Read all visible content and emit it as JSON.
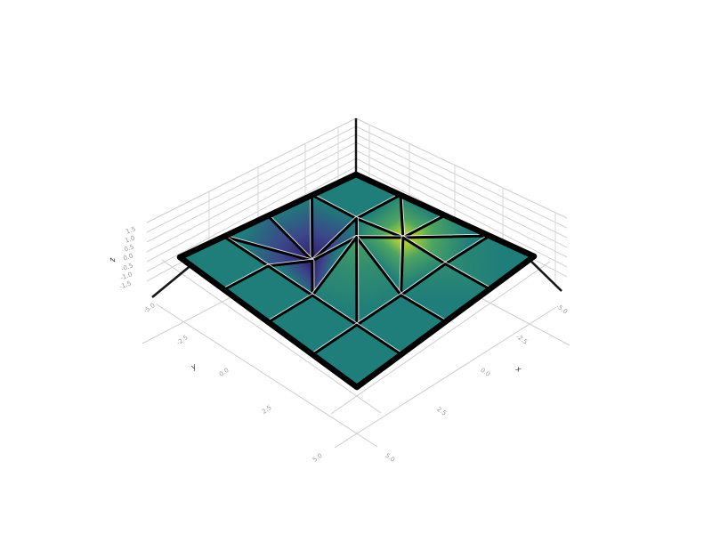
{
  "figure": {
    "type": "3d-surface-plot",
    "background_color": "#ffffff",
    "description": "3D mesh surface plot: flat plane at z=0 with one raised peak (yellow) and one sunken dip (dark indigo), viridis colormap, black wireframe edges, gray box grid"
  },
  "chart_data": {
    "type": "surface",
    "title": "",
    "legend": null,
    "grid": "on",
    "axes": {
      "x": {
        "label": "x",
        "ticks": [
          "-5.0",
          "-2.5",
          "0.0",
          "2.5",
          "5.0"
        ]
      },
      "y": {
        "label": "y",
        "ticks": [
          "-5.0",
          "-2.5",
          "0.0",
          "2.5",
          "5.0"
        ]
      },
      "z": {
        "label": "z",
        "ticks": [
          "1.5",
          "1.0",
          "0.5",
          "0.0",
          "-0.5",
          "-1.0",
          "-1.5"
        ]
      }
    },
    "colormap": {
      "name": "viridis",
      "stops": [
        [
          -1,
          "#2e1c66"
        ],
        [
          -0.5,
          "#3f3f8c"
        ],
        [
          0,
          "#1f7d7a"
        ],
        [
          0.5,
          "#52a85e"
        ],
        [
          1,
          "#d9e026"
        ]
      ]
    },
    "colors": {
      "flat_surface": "#1f7d7a",
      "peak": "#d9e026",
      "dip": "#2e1c66",
      "edge": "#000000",
      "edge_halo": "#ffffff",
      "grid_line": "#d2d2d2",
      "floor_line": "#cdcdcd",
      "spine": "#161616",
      "tick_text": "#9a9a9a",
      "axis_letter_text": "#3a3a3a"
    },
    "surface": {
      "grid_cells": [
        4,
        4
      ],
      "flat_z": 0,
      "peak": {
        "x": 1.05,
        "y": 2.1,
        "z": 1.0
      },
      "dip": {
        "x": 2.2,
        "y": 1.2,
        "z": -1.0
      },
      "points": [
        [
          0,
          0,
          0
        ],
        [
          0,
          1,
          0
        ],
        [
          0,
          2,
          0
        ],
        [
          0,
          3,
          0
        ],
        [
          0,
          4,
          0
        ],
        [
          1,
          0,
          0
        ],
        [
          1,
          1,
          0
        ],
        [
          1.05,
          2.1,
          1.0
        ],
        [
          1,
          3,
          0.18
        ],
        [
          1,
          4,
          0
        ],
        [
          2,
          0,
          0
        ],
        [
          2.2,
          1.2,
          -1.0
        ],
        [
          1.45,
          1.45,
          0.4
        ],
        [
          2,
          3,
          0
        ],
        [
          2,
          4,
          0
        ],
        [
          3,
          0,
          0
        ],
        [
          3,
          1,
          0
        ],
        [
          3,
          2,
          0
        ],
        [
          3,
          3,
          0
        ],
        [
          3,
          4,
          0
        ],
        [
          4,
          0,
          0
        ],
        [
          4,
          1,
          0
        ],
        [
          4,
          2,
          0
        ],
        [
          4,
          3,
          0
        ],
        [
          4,
          4,
          0
        ]
      ],
      "faces": [
        [
          0,
          1,
          6,
          5
        ],
        [
          3,
          4,
          9,
          8
        ],
        [
          8,
          9,
          14,
          13
        ],
        [
          13,
          14,
          19,
          18
        ],
        [
          15,
          16,
          21,
          20
        ],
        [
          16,
          17,
          22,
          21
        ],
        [
          17,
          18,
          23,
          22
        ],
        [
          18,
          19,
          24,
          23
        ],
        [
          1,
          2,
          7
        ],
        [
          1,
          7,
          6
        ],
        [
          2,
          3,
          7
        ],
        [
          3,
          8,
          7
        ],
        [
          7,
          8,
          13
        ],
        [
          7,
          13,
          12
        ],
        [
          6,
          7,
          12
        ],
        [
          6,
          12,
          11
        ],
        [
          5,
          6,
          11
        ],
        [
          5,
          11,
          10
        ],
        [
          10,
          11,
          15
        ],
        [
          11,
          16,
          15
        ],
        [
          11,
          12,
          17
        ],
        [
          11,
          17,
          16
        ],
        [
          12,
          13,
          18
        ],
        [
          12,
          18,
          17
        ]
      ],
      "border": [
        0,
        1,
        2,
        3,
        4,
        9,
        14,
        19,
        24,
        23,
        22,
        21,
        20,
        15,
        10,
        5
      ]
    }
  }
}
